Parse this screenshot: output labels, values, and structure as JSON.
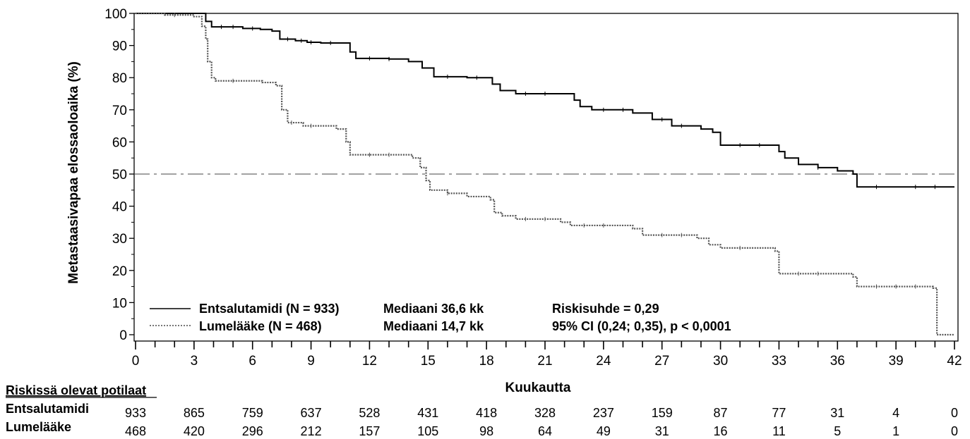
{
  "chart_data": {
    "type": "line",
    "subtype": "kaplan-meier",
    "title": "",
    "ylabel": "Metastaasivapaa elossaoloaika (%)",
    "xlabel": "Kuukautta",
    "xlim": [
      0,
      42
    ],
    "ylim": [
      0,
      100
    ],
    "xticks": [
      0,
      3,
      6,
      9,
      12,
      15,
      18,
      21,
      24,
      27,
      30,
      33,
      36,
      39,
      42
    ],
    "yticks": [
      0,
      10,
      20,
      30,
      40,
      50,
      60,
      70,
      80,
      90,
      100
    ],
    "x_minor_step": 1,
    "grid": false,
    "reference_line": {
      "y": 50,
      "style": "dash-dot"
    },
    "series": [
      {
        "name": "Entsalutamidi (N = 933)",
        "style": "solid",
        "median_text": "Mediaani 36,6 kk",
        "steps": [
          [
            0,
            100
          ],
          [
            1.9,
            100
          ],
          [
            3.6,
            97.5
          ],
          [
            3.9,
            95.8
          ],
          [
            5.5,
            95.3
          ],
          [
            6.4,
            95
          ],
          [
            7,
            94.5
          ],
          [
            7.4,
            92
          ],
          [
            8.2,
            91.5
          ],
          [
            8.8,
            91
          ],
          [
            9.5,
            90.8
          ],
          [
            11,
            88
          ],
          [
            11.3,
            86
          ],
          [
            13,
            85.8
          ],
          [
            14,
            85
          ],
          [
            14.7,
            83
          ],
          [
            15.3,
            80.3
          ],
          [
            17,
            80
          ],
          [
            18.3,
            78
          ],
          [
            18.7,
            76
          ],
          [
            19.5,
            75
          ],
          [
            22.5,
            73
          ],
          [
            22.8,
            71
          ],
          [
            23.4,
            70
          ],
          [
            25.5,
            69
          ],
          [
            26.5,
            67
          ],
          [
            27.5,
            65
          ],
          [
            29,
            64
          ],
          [
            29.6,
            63
          ],
          [
            30,
            59
          ],
          [
            33,
            57
          ],
          [
            33.3,
            55
          ],
          [
            34,
            53
          ],
          [
            35,
            52
          ],
          [
            36,
            51
          ],
          [
            36.8,
            50
          ],
          [
            37,
            46
          ],
          [
            42,
            46
          ]
        ],
        "stepcolor": "#000000",
        "censor_ticks": [
          4.4,
          5,
          6,
          7.8,
          8.5,
          9,
          10,
          12,
          13,
          16,
          17.5,
          20,
          21,
          24,
          25,
          27,
          28,
          31,
          32,
          35,
          38,
          40,
          41
        ]
      },
      {
        "name": "Lumelääke (N = 468)",
        "style": "dotted",
        "median_text": "Mediaani 14,7 kk",
        "steps": [
          [
            0,
            100
          ],
          [
            1.5,
            99.5
          ],
          [
            3,
            99
          ],
          [
            3.4,
            96
          ],
          [
            3.6,
            92
          ],
          [
            3.7,
            85
          ],
          [
            3.9,
            80
          ],
          [
            4.1,
            79
          ],
          [
            6.5,
            78.5
          ],
          [
            7.2,
            77.5
          ],
          [
            7.5,
            70
          ],
          [
            7.8,
            66
          ],
          [
            8.6,
            65
          ],
          [
            10.3,
            64
          ],
          [
            10.8,
            60
          ],
          [
            11,
            56
          ],
          [
            14.2,
            55
          ],
          [
            14.6,
            52
          ],
          [
            14.9,
            48
          ],
          [
            15.1,
            45
          ],
          [
            16,
            44
          ],
          [
            17,
            43
          ],
          [
            18.2,
            42
          ],
          [
            18.4,
            38
          ],
          [
            18.8,
            37
          ],
          [
            19.5,
            36
          ],
          [
            21.8,
            35
          ],
          [
            22.3,
            34
          ],
          [
            25.5,
            33
          ],
          [
            26,
            31
          ],
          [
            28.8,
            30
          ],
          [
            29.4,
            28
          ],
          [
            30,
            27
          ],
          [
            32.8,
            26
          ],
          [
            33,
            19
          ],
          [
            36.8,
            18
          ],
          [
            37,
            15
          ],
          [
            40.9,
            14.5
          ],
          [
            41.1,
            0
          ],
          [
            42,
            0
          ]
        ],
        "stepcolor": "#555555",
        "censor_ticks": [
          2,
          5,
          8,
          9,
          12,
          13,
          16,
          20,
          21,
          23,
          24,
          27,
          28,
          31,
          34,
          35,
          38,
          39,
          40
        ]
      }
    ],
    "annotations": {
      "hazard_ratio": "Riskisuhde = 0,29",
      "ci_text": "95% CI (0,24; 0,35), p < 0,0001"
    },
    "risk_table": {
      "title": "Riskissä olevat potilaat",
      "timepoints": [
        0,
        3,
        6,
        9,
        12,
        15,
        18,
        21,
        24,
        27,
        30,
        33,
        36,
        39,
        42
      ],
      "rows": [
        {
          "label": "Entsalutamidi",
          "values": [
            "933",
            "865",
            "759",
            "637",
            "528",
            "431",
            "418",
            "328",
            "237",
            "159",
            "87",
            "77",
            "31",
            "4",
            "0"
          ]
        },
        {
          "label": "Lumelääke",
          "values": [
            "468",
            "420",
            "296",
            "212",
            "157",
            "105",
            "98",
            "64",
            "49",
            "31",
            "16",
            "11",
            "5",
            "1",
            "0"
          ]
        }
      ]
    }
  }
}
